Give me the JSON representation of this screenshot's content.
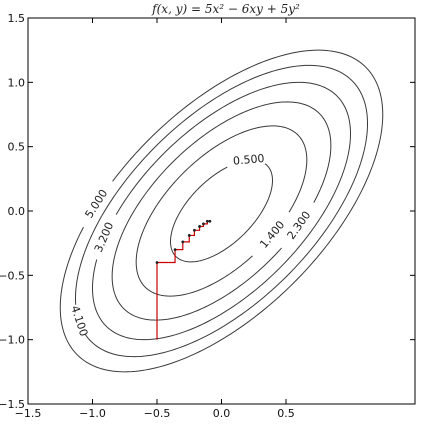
{
  "chart_data": {
    "type": "contour",
    "title": "f(x, y) = 5x² − 6xy + 5y²",
    "function": {
      "a": 5,
      "b": -6,
      "c": 5
    },
    "xlim": [
      -1.5,
      1.5
    ],
    "ylim": [
      -1.5,
      1.5
    ],
    "xticks": [
      "−1.5",
      "−1.0",
      "−0.5",
      "0.0",
      "0.5"
    ],
    "xtick_values": [
      -1.5,
      -1.0,
      -0.5,
      0.0,
      0.5
    ],
    "yticks": [
      "−1.5",
      "−1.0",
      "−0.5",
      "0.0",
      "0.5",
      "1.0",
      "1.5"
    ],
    "ytick_values": [
      -1.5,
      -1.0,
      -0.5,
      0.0,
      0.5,
      1.0,
      1.5
    ],
    "grid": false,
    "contour_levels": [
      0.5,
      1.4,
      2.3,
      3.2,
      4.1,
      5.0
    ],
    "contour_labels": [
      {
        "text": "0.500",
        "level": 0.5
      },
      {
        "text": "1.400",
        "level": 1.4
      },
      {
        "text": "2.300",
        "level": 2.3
      },
      {
        "text": "3.200",
        "level": 3.2
      },
      {
        "text": "4.100",
        "level": 4.1
      },
      {
        "text": "5.000",
        "level": 5.0
      }
    ],
    "contour_color": "#3a3a3a",
    "path_color": "#cc0000",
    "path": [
      [
        -0.5,
        -1.0
      ],
      [
        -0.5,
        -0.4
      ],
      [
        -0.36,
        -0.4
      ],
      [
        -0.36,
        -0.3
      ],
      [
        -0.3,
        -0.3
      ],
      [
        -0.3,
        -0.24
      ],
      [
        -0.25,
        -0.24
      ],
      [
        -0.25,
        -0.19
      ],
      [
        -0.21,
        -0.19
      ],
      [
        -0.21,
        -0.15
      ],
      [
        -0.17,
        -0.15
      ],
      [
        -0.17,
        -0.12
      ],
      [
        -0.14,
        -0.12
      ],
      [
        -0.14,
        -0.1
      ],
      [
        -0.11,
        -0.1
      ],
      [
        -0.11,
        -0.08
      ],
      [
        -0.09,
        -0.08
      ]
    ]
  }
}
